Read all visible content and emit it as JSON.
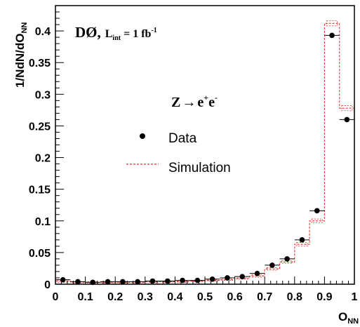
{
  "chart_data": {
    "type": "scatter",
    "experiment": "DØ,",
    "lumi_prefix": "L",
    "lumi_sub": "int",
    "lumi_value": " = 1 fb",
    "lumi_sup": "-1",
    "process": {
      "prefix": "Z",
      "arrow": "→",
      "e1": "e",
      "sup1": "+",
      "e2": "e",
      "sup2": "-"
    },
    "xlabel": "O",
    "xlabel_sub": "NN",
    "ylabel": "1/NdN/dO",
    "ylabel_sub": "NN",
    "xlim": [
      0,
      1
    ],
    "ylim": [
      0,
      0.44
    ],
    "x_ticks": [
      0,
      0.1,
      0.2,
      0.3,
      0.4,
      0.5,
      0.6,
      0.7,
      0.8,
      0.9,
      1
    ],
    "x_tick_labels": [
      "0",
      "0.1",
      "0.2",
      "0.3",
      "0.4",
      "0.5",
      "0.6",
      "0.7",
      "0.8",
      "0.9",
      "1"
    ],
    "y_ticks": [
      0,
      0.05,
      0.1,
      0.15,
      0.2,
      0.25,
      0.3,
      0.35,
      0.4
    ],
    "y_tick_labels": [
      "0",
      "0.05",
      "0.1",
      "0.15",
      "0.2",
      "0.25",
      "0.3",
      "0.35",
      "0.4"
    ],
    "bin_edges": [
      0,
      0.05,
      0.1,
      0.15,
      0.2,
      0.25,
      0.3,
      0.35,
      0.4,
      0.45,
      0.5,
      0.55,
      0.6,
      0.65,
      0.7,
      0.75,
      0.8,
      0.85,
      0.9,
      0.95,
      1.0
    ],
    "legend": {
      "position": "center-left",
      "data_label": "Data",
      "sim_label": "Simulation"
    },
    "series": [
      {
        "name": "Data",
        "style": "points",
        "color": "#000000",
        "x": [
          0.025,
          0.075,
          0.125,
          0.175,
          0.225,
          0.275,
          0.325,
          0.375,
          0.425,
          0.475,
          0.525,
          0.575,
          0.625,
          0.675,
          0.725,
          0.775,
          0.825,
          0.875,
          0.925,
          0.975
        ],
        "values": [
          0.007,
          0.004,
          0.003,
          0.004,
          0.004,
          0.004,
          0.005,
          0.005,
          0.006,
          0.006,
          0.008,
          0.01,
          0.012,
          0.017,
          0.03,
          0.04,
          0.07,
          0.116,
          0.393,
          0.26
        ]
      },
      {
        "name": "Simulation",
        "style": "step",
        "color": "#e8332c",
        "values": [
          0.005,
          0.003,
          0.003,
          0.003,
          0.003,
          0.003,
          0.004,
          0.004,
          0.004,
          0.005,
          0.006,
          0.007,
          0.009,
          0.013,
          0.024,
          0.035,
          0.063,
          0.1,
          0.412,
          0.278
        ],
        "err": [
          0.002,
          0.001,
          0.001,
          0.001,
          0.001,
          0.001,
          0.001,
          0.001,
          0.001,
          0.001,
          0.001,
          0.001,
          0.001,
          0.002,
          0.002,
          0.002,
          0.003,
          0.003,
          0.004,
          0.004
        ]
      }
    ]
  }
}
